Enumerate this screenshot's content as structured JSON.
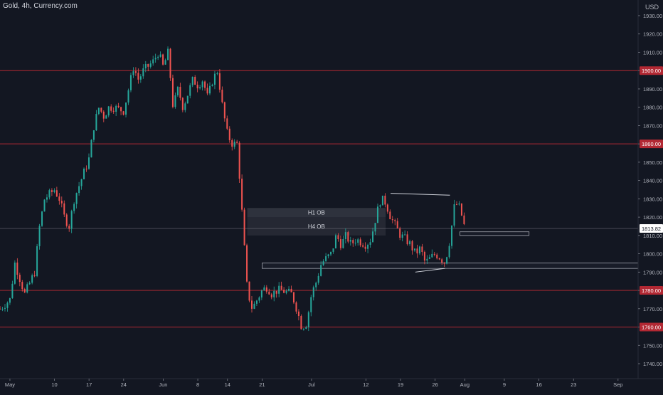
{
  "header": {
    "title": "Gold, 4h, Currency.com",
    "currency": "USD"
  },
  "price_label": "1813.82",
  "chart_data": {
    "type": "candlestick",
    "symbol": "Gold",
    "interval": "4h",
    "source": "Currency.com",
    "ylim": [
      1733,
      1937
    ],
    "y_ticks": [
      1740,
      1750,
      1760,
      1770,
      1780,
      1790,
      1800,
      1810,
      1820,
      1830,
      1840,
      1850,
      1860,
      1870,
      1880,
      1890,
      1900,
      1910,
      1920,
      1930
    ],
    "x_ticks": [
      "May",
      "10",
      "17",
      "24",
      "Jun",
      "8",
      "14",
      "21",
      "Jul",
      "12",
      "19",
      "26",
      "Aug",
      "9",
      "16",
      "23",
      "Sep"
    ],
    "horizontal_levels": [
      1900,
      1860,
      1780,
      1760
    ],
    "current_price": 1813.82,
    "zones": [
      {
        "label": "H1 OB",
        "from_x": "Jun 18",
        "to_x": "Jul 16",
        "high": 1825,
        "low": 1820
      },
      {
        "label": "H4 OB",
        "from_x": "Jun 18",
        "to_x": "Jul 16",
        "high": 1820,
        "low": 1810
      },
      {
        "label": "",
        "from_x": "Jul 31",
        "to_x": "Aug 14",
        "high": 1812,
        "low": 1810
      },
      {
        "label": "",
        "from_x": "Jun 21",
        "to_x": "Sep 7",
        "high": 1795,
        "low": 1792
      }
    ],
    "trendlines": [
      {
        "from": [
          "Jul 17",
          1833
        ],
        "to": [
          "Jul 29",
          1832
        ]
      },
      {
        "from": [
          "Jul 22",
          1790
        ],
        "to": [
          "Jul 28",
          1792
        ]
      }
    ],
    "price_path": [
      [
        "Apr 29",
        1770
      ],
      [
        "May 1",
        1775
      ],
      [
        "May 2",
        1795
      ],
      [
        "May 4",
        1778
      ],
      [
        "May 6",
        1790
      ],
      [
        "May 7",
        1815
      ],
      [
        "May 8",
        1830
      ],
      [
        "May 10",
        1835
      ],
      [
        "May 11",
        1830
      ],
      [
        "May 12",
        1820
      ],
      [
        "May 13",
        1815
      ],
      [
        "May 14",
        1830
      ],
      [
        "May 17",
        1852
      ],
      [
        "May 18",
        1870
      ],
      [
        "May 19",
        1880
      ],
      [
        "May 20",
        1875
      ],
      [
        "May 21",
        1880
      ],
      [
        "May 22",
        1880
      ],
      [
        "May 24",
        1878
      ],
      [
        "May 25",
        1890
      ],
      [
        "May 26",
        1902
      ],
      [
        "May 27",
        1895
      ],
      [
        "May 28",
        1900
      ],
      [
        "May 30",
        1905
      ],
      [
        "May 31",
        1910
      ],
      [
        "Jun 1",
        1902
      ],
      [
        "Jun 2",
        1910
      ],
      [
        "Jun 3",
        1880
      ],
      [
        "Jun 4",
        1890
      ],
      [
        "Jun 5",
        1880
      ],
      [
        "Jun 7",
        1895
      ],
      [
        "Jun 8",
        1892
      ],
      [
        "Jun 9",
        1895
      ],
      [
        "Jun 10",
        1885
      ],
      [
        "Jun 11",
        1895
      ],
      [
        "Jun 12",
        1900
      ],
      [
        "Jun 13",
        1880
      ],
      [
        "Jun 14",
        1865
      ],
      [
        "Jun 15",
        1860
      ],
      [
        "Jun 16",
        1860
      ],
      [
        "Jun 17",
        1820
      ],
      [
        "Jun 18",
        1780
      ],
      [
        "Jun 19",
        1770
      ],
      [
        "Jun 21",
        1780
      ],
      [
        "Jun 22",
        1782
      ],
      [
        "Jun 23",
        1778
      ],
      [
        "Jun 24",
        1780
      ],
      [
        "Jun 25",
        1780
      ],
      [
        "Jun 27",
        1778
      ],
      [
        "Jun 28",
        1770
      ],
      [
        "Jun 29",
        1760
      ],
      [
        "Jun 30",
        1762
      ],
      [
        "Jul 1",
        1778
      ],
      [
        "Jul 2",
        1785
      ],
      [
        "Jul 3",
        1795
      ],
      [
        "Jul 5",
        1800
      ],
      [
        "Jul 6",
        1810
      ],
      [
        "Jul 7",
        1805
      ],
      [
        "Jul 8",
        1810
      ],
      [
        "Jul 9",
        1805
      ],
      [
        "Jul 10",
        1808
      ],
      [
        "Jul 12",
        1805
      ],
      [
        "Jul 13",
        1808
      ],
      [
        "Jul 14",
        1820
      ],
      [
        "Jul 15",
        1830
      ],
      [
        "Jul 16",
        1828
      ],
      [
        "Jul 17",
        1820
      ],
      [
        "Jul 19",
        1810
      ],
      [
        "Jul 20",
        1808
      ],
      [
        "Jul 21",
        1805
      ],
      [
        "Jul 22",
        1800
      ],
      [
        "Jul 23",
        1803
      ],
      [
        "Jul 24",
        1795
      ],
      [
        "Jul 26",
        1800
      ],
      [
        "Jul 27",
        1798
      ],
      [
        "Jul 28",
        1795
      ],
      [
        "Jul 29",
        1808
      ],
      [
        "Jul 30",
        1828
      ],
      [
        "Jul 31",
        1825
      ],
      [
        "Aug 1",
        1814
      ]
    ]
  }
}
